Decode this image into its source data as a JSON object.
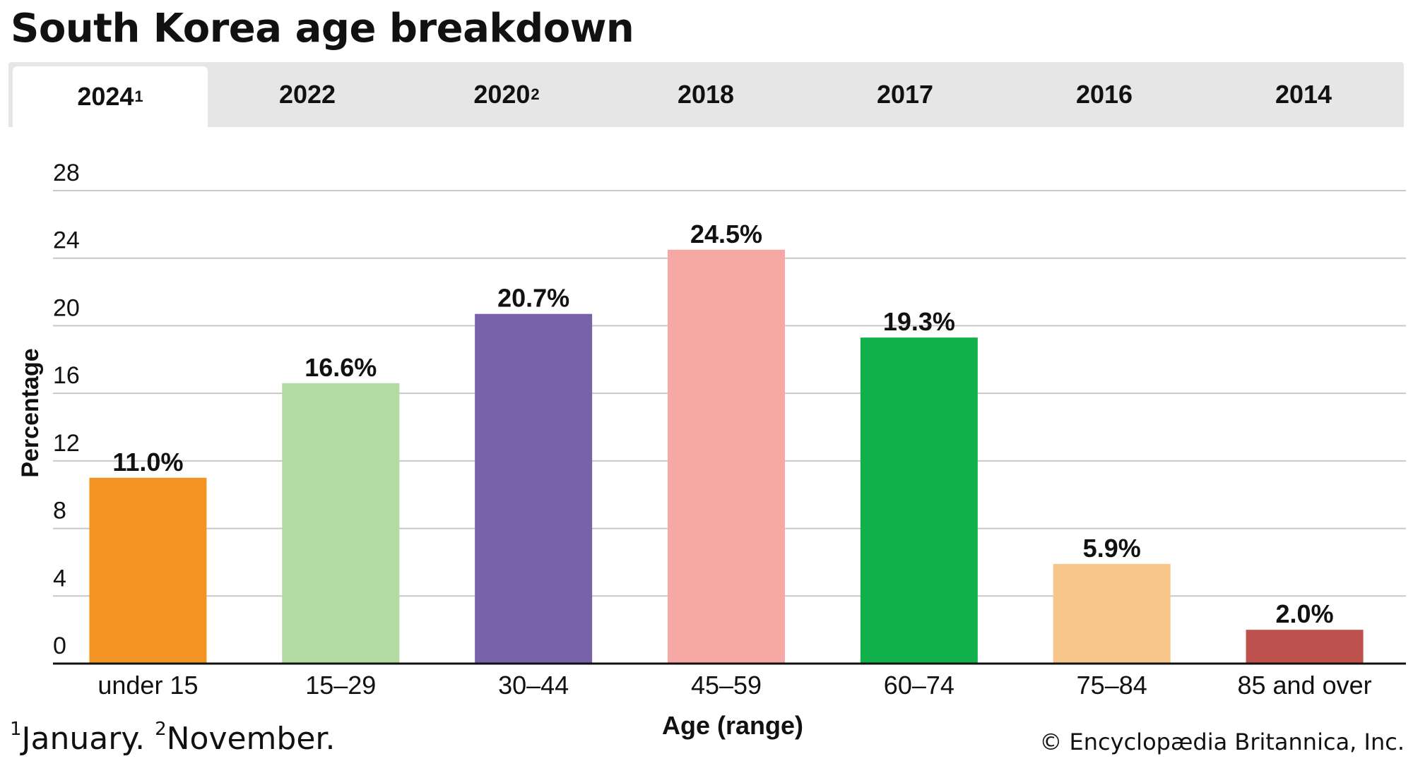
{
  "title": "South Korea age breakdown",
  "tabs": [
    {
      "label": "2024",
      "sup": "1",
      "active": true
    },
    {
      "label": "2022",
      "sup": "",
      "active": false
    },
    {
      "label": "2020",
      "sup": "2",
      "active": false
    },
    {
      "label": "2018",
      "sup": "",
      "active": false
    },
    {
      "label": "2017",
      "sup": "",
      "active": false
    },
    {
      "label": "2016",
      "sup": "",
      "active": false
    },
    {
      "label": "2014",
      "sup": "",
      "active": false
    }
  ],
  "chart_data": {
    "type": "bar",
    "categories": [
      "under 15",
      "15–29",
      "30–44",
      "45–59",
      "60–74",
      "75–84",
      "85 and over"
    ],
    "values": [
      11.0,
      16.6,
      20.7,
      24.5,
      19.3,
      5.9,
      2.0
    ],
    "value_labels": [
      "11.0%",
      "16.6%",
      "20.7%",
      "24.5%",
      "19.3%",
      "5.9%",
      "2.0%"
    ],
    "colors": [
      "#f39422",
      "#b5dba4",
      "#7a62a8",
      "#f5a8a4",
      "#10b04b",
      "#f8c68a",
      "#be504d"
    ],
    "xlabel": "Age (range)",
    "ylabel": "Percentage",
    "ylim": [
      0,
      28
    ],
    "yticks": [
      0,
      4,
      8,
      12,
      16,
      20,
      24,
      28
    ],
    "grid": true
  },
  "footnote": {
    "mark1": "1",
    "text1": "January. ",
    "mark2": "2",
    "text2": "November."
  },
  "copyright": "© Encyclopædia Britannica, Inc."
}
